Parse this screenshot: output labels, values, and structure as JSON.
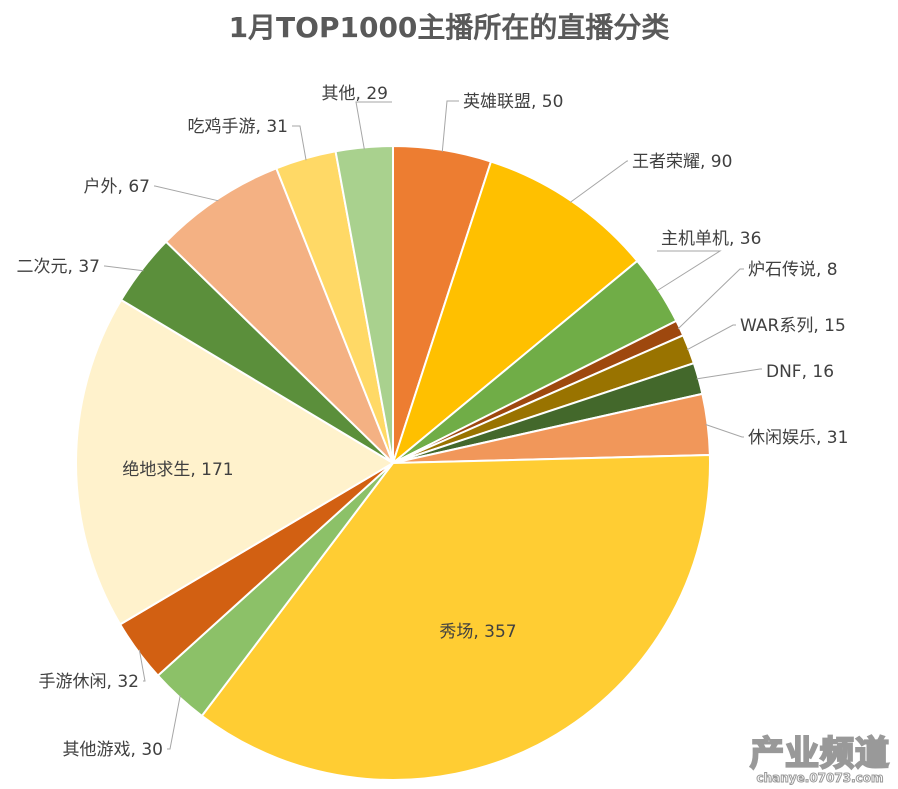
{
  "chart_data": {
    "type": "pie",
    "title": "1月TOP1000主播所在的直播分类",
    "start": "top",
    "direction": "clockwise",
    "slices": [
      {
        "label": "英雄联盟",
        "value": 50,
        "color": "#ED7D31"
      },
      {
        "label": "王者荣耀",
        "value": 90,
        "color": "#FFC000"
      },
      {
        "label": "主机单机",
        "value": 36,
        "color": "#70AD47"
      },
      {
        "label": "炉石传说",
        "value": 8,
        "color": "#9E480E"
      },
      {
        "label": "WAR系列",
        "value": 15,
        "color": "#997300"
      },
      {
        "label": "DNF",
        "value": 16,
        "color": "#43682B"
      },
      {
        "label": "休闲娱乐",
        "value": 31,
        "color": "#F1975A"
      },
      {
        "label": "秀场",
        "value": 357,
        "color": "#FFCD33"
      },
      {
        "label": "其他游戏",
        "value": 30,
        "color": "#8CC168"
      },
      {
        "label": "手游休闲",
        "value": 32,
        "color": "#D26012"
      },
      {
        "label": "绝地求生",
        "value": 171,
        "color": "#FFF2CC"
      },
      {
        "label": "二次元",
        "value": 37,
        "color": "#5B8F3B"
      },
      {
        "label": "户外",
        "value": 67,
        "color": "#F4B183"
      },
      {
        "label": "吃鸡手游",
        "value": 31,
        "color": "#FFD966"
      },
      {
        "label": "其他",
        "value": 29,
        "color": "#A9D18E"
      }
    ]
  },
  "watermark": {
    "main": "产业频道",
    "sub": "chanye.07073.com"
  }
}
